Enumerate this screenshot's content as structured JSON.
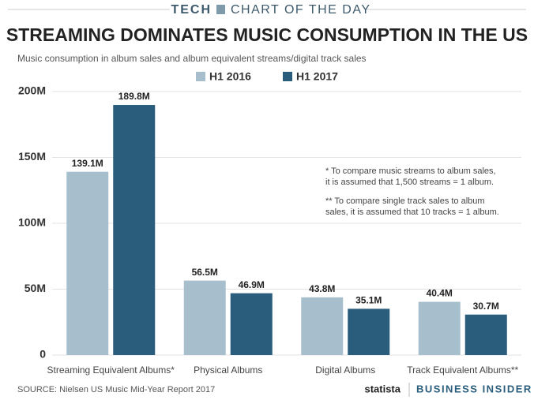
{
  "header": {
    "section": "TECH",
    "label": "CHART OF THE DAY"
  },
  "chart_data": {
    "type": "bar",
    "title": "STREAMING DOMINATES MUSIC CONSUMPTION IN THE US",
    "subtitle": "Music consumption in album sales and album equivalent streams/digital track sales",
    "categories": [
      "Streaming Equivalent Albums*",
      "Physical Albums",
      "Digital Albums",
      "Track Equivalent Albums**"
    ],
    "series": [
      {
        "name": "H1 2016",
        "color": "#a7bfcc",
        "values": [
          139.1,
          56.5,
          43.8,
          40.4
        ],
        "value_labels": [
          "139.1M",
          "56.5M",
          "43.8M",
          "40.4M"
        ]
      },
      {
        "name": "H1 2017",
        "color": "#2a5d7c",
        "values": [
          189.8,
          46.9,
          35.1,
          30.7
        ],
        "value_labels": [
          "189.8M",
          "46.9M",
          "35.1M",
          "30.7M"
        ]
      }
    ],
    "ylim": [
      0,
      200
    ],
    "yticks": [
      0,
      {
        "value": 50,
        "label": "50M"
      },
      {
        "value": 100,
        "label": "100M"
      },
      {
        "value": 150,
        "label": "150M"
      },
      {
        "value": 200,
        "label": "200M"
      }
    ],
    "grid": true,
    "notes": [
      "* To compare music streams to album sales,",
      "it is assumed that 1,500 streams = 1 album.",
      "** To compare single track sales to album",
      "sales, it is assumed that 10 tracks = 1 album."
    ]
  },
  "footer": {
    "source": "SOURCE: Nielsen US Music Mid-Year Report 2017",
    "brand1": "statista",
    "brand2": "BUSINESS INSIDER"
  }
}
